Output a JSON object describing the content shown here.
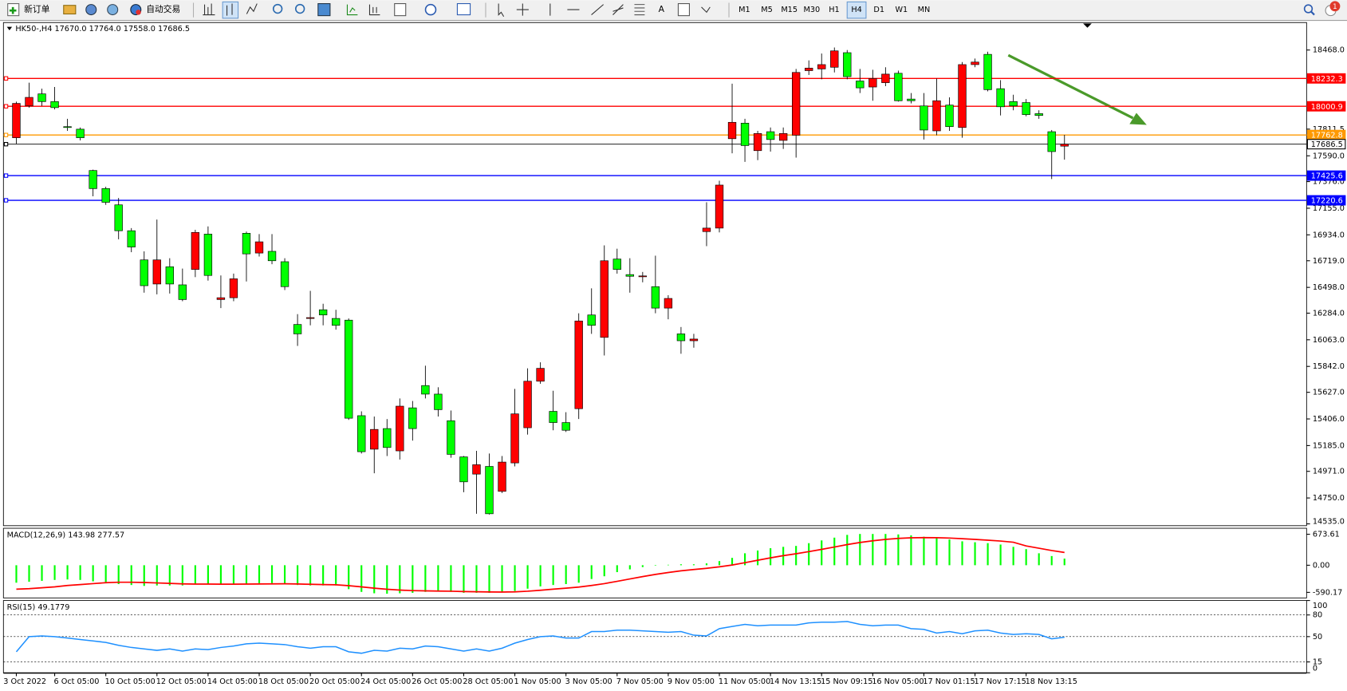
{
  "toolbar": {
    "new_order": "新订单",
    "auto_trading": "自动交易",
    "text_tool": "A",
    "timeframes": [
      "M1",
      "M5",
      "M15",
      "M30",
      "H1",
      "H4",
      "D1",
      "W1",
      "MN"
    ],
    "active_timeframe": "H4",
    "notifications": 1
  },
  "chart_data": [
    {
      "type": "candlestick",
      "symbol": "HK50-,H4",
      "header_labels": [
        "17670.0",
        "17764.0",
        "17558.0",
        "17686.5"
      ],
      "up_color": "#ff0000",
      "down_color": "#00ff00",
      "categories": [
        "3 Oct 2022",
        null,
        null,
        "6 Oct 05:00",
        null,
        null,
        null,
        "10 Oct 05:00",
        null,
        null,
        null,
        "12 Oct 05:00",
        null,
        null,
        null,
        "14 Oct 05:00",
        null,
        null,
        null,
        "18 Oct 05:00",
        null,
        null,
        null,
        "20 Oct 05:00",
        null,
        null,
        null,
        "24 Oct 05:00",
        null,
        null,
        null,
        "26 Oct 05:00",
        null,
        null,
        null,
        "28 Oct 05:00",
        null,
        null,
        null,
        "1 Nov 05:00",
        null,
        null,
        null,
        "3 Nov 05:00",
        null,
        null,
        null,
        "7 Nov 05:00",
        null,
        null,
        null,
        "9 Nov 05:00",
        null,
        null,
        null,
        "11 Nov 05:00",
        null,
        null,
        null,
        "14 Nov 13:15",
        null,
        null,
        null,
        "15 Nov 09:15",
        null,
        null,
        null,
        "16 Nov 05:00",
        null,
        null,
        null,
        "17 Nov 01:15",
        null,
        null,
        null,
        "17 Nov 17:15",
        null,
        null,
        null,
        "18 Nov 13:15",
        null,
        null,
        null
      ],
      "ohlc": [
        [
          17740,
          18040,
          17690,
          18025
        ],
        [
          18004,
          18197,
          17990,
          18075
        ],
        [
          18104,
          18147,
          18004,
          18040
        ],
        [
          18040,
          18161,
          17975,
          17990
        ],
        [
          17832,
          17897,
          17797,
          17829
        ],
        [
          17811,
          17825,
          17718,
          17740
        ],
        [
          17468,
          17475,
          17254,
          17318
        ],
        [
          17318,
          17333,
          17183,
          17204
        ],
        [
          17183,
          17240,
          16897,
          16968
        ],
        [
          16968,
          16990,
          16790,
          16833
        ],
        [
          16726,
          16797,
          16454,
          16512
        ],
        [
          16526,
          17061,
          16440,
          16726
        ],
        [
          16669,
          16740,
          16447,
          16526
        ],
        [
          16519,
          16654,
          16383,
          16397
        ],
        [
          16647,
          16976,
          16583,
          16954
        ],
        [
          16940,
          17004,
          16554,
          16597
        ],
        [
          16397,
          16597,
          16326,
          16412
        ],
        [
          16412,
          16612,
          16383,
          16569
        ],
        [
          16947,
          16961,
          16547,
          16776
        ],
        [
          16783,
          16940,
          16754,
          16876
        ],
        [
          16797,
          16940,
          16690,
          16719
        ],
        [
          16711,
          16740,
          16476,
          16504
        ],
        [
          16190,
          16276,
          16012,
          16112
        ],
        [
          16240,
          16469,
          16183,
          16247
        ],
        [
          16312,
          16362,
          16183,
          16269
        ],
        [
          16240,
          16312,
          16147,
          16183
        ],
        [
          16226,
          16240,
          15398,
          15412
        ],
        [
          15433,
          15469,
          15119,
          15134
        ],
        [
          15155,
          15426,
          14955,
          15319
        ],
        [
          15326,
          15405,
          15098,
          15169
        ],
        [
          15141,
          15576,
          15069,
          15512
        ],
        [
          15498,
          15555,
          15226,
          15326
        ],
        [
          15683,
          15848,
          15576,
          15612
        ],
        [
          15612,
          15669,
          15426,
          15483
        ],
        [
          15391,
          15476,
          15084,
          15112
        ],
        [
          15091,
          15098,
          14798,
          14884
        ],
        [
          14948,
          15141,
          14619,
          15026
        ],
        [
          15012,
          15119,
          14612,
          14619
        ],
        [
          14805,
          15098,
          14791,
          15048
        ],
        [
          15041,
          15655,
          15012,
          15448
        ],
        [
          15333,
          15826,
          15276,
          15719
        ],
        [
          15719,
          15876,
          15698,
          15826
        ],
        [
          15469,
          15640,
          15312,
          15376
        ],
        [
          15376,
          15462,
          15298,
          15312
        ],
        [
          15491,
          16283,
          15405,
          16219
        ],
        [
          16269,
          16490,
          16112,
          16183
        ],
        [
          16083,
          16847,
          15933,
          16719
        ],
        [
          16733,
          16819,
          16612,
          16647
        ],
        [
          16604,
          16740,
          16454,
          16590
        ],
        [
          16590,
          16626,
          16540,
          16593
        ],
        [
          16504,
          16761,
          16283,
          16326
        ],
        [
          16326,
          16433,
          16233,
          16406
        ],
        [
          16112,
          16169,
          15947,
          16055
        ],
        [
          16055,
          16112,
          15997,
          16069
        ],
        [
          16961,
          17204,
          16840,
          16990
        ],
        [
          16990,
          17383,
          16954,
          17347
        ],
        [
          17732,
          18189,
          17611,
          17868
        ],
        [
          17861,
          17897,
          17540,
          17675
        ],
        [
          17633,
          17797,
          17554,
          17775
        ],
        [
          17790,
          17825,
          17625,
          17725
        ],
        [
          17718,
          17825,
          17647,
          17775
        ],
        [
          17761,
          18311,
          17575,
          18282
        ],
        [
          18297,
          18382,
          18261,
          18318
        ],
        [
          18311,
          18439,
          18225,
          18347
        ],
        [
          18325,
          18489,
          18282,
          18461
        ],
        [
          18446,
          18468,
          18225,
          18247
        ],
        [
          18211,
          18311,
          18111,
          18154
        ],
        [
          18161,
          18304,
          18047,
          18232
        ],
        [
          18197,
          18325,
          18168,
          18268
        ],
        [
          18275,
          18297,
          18040,
          18047
        ],
        [
          18061,
          18111,
          18025,
          18047
        ],
        [
          18004,
          18111,
          17725,
          17804
        ],
        [
          17797,
          18232,
          17761,
          18047
        ],
        [
          18011,
          18075,
          17797,
          17832
        ],
        [
          17825,
          18368,
          17740,
          18347
        ],
        [
          18347,
          18397,
          18325,
          18368
        ],
        [
          18432,
          18454,
          18125,
          18139
        ],
        [
          18147,
          18218,
          17925,
          17997
        ],
        [
          18040,
          18097,
          17968,
          18004
        ],
        [
          18032,
          18061,
          17918,
          17932
        ],
        [
          17940,
          17968,
          17897,
          17925
        ],
        [
          17790,
          17804,
          17397,
          17625
        ],
        [
          17670,
          17764,
          17558,
          17686.5
        ]
      ],
      "ylim": [
        14520,
        18696
      ],
      "yticks": [
        {
          "value": 18468,
          "label": "18468.0"
        },
        {
          "value": 17811.5,
          "label": "17811.5"
        },
        {
          "value": 17590,
          "label": "17590.0"
        },
        {
          "value": 17376,
          "label": "17376.0"
        },
        {
          "value": 17155,
          "label": "17155.0"
        },
        {
          "value": 16934,
          "label": "16934.0"
        },
        {
          "value": 16719,
          "label": "16719.0"
        },
        {
          "value": 16498,
          "label": "16498.0"
        },
        {
          "value": 16284,
          "label": "16284.0"
        },
        {
          "value": 16063,
          "label": "16063.0"
        },
        {
          "value": 15842,
          "label": "15842.0"
        },
        {
          "value": 15627,
          "label": "15627.0"
        },
        {
          "value": 15406,
          "label": "15406.0"
        },
        {
          "value": 15185,
          "label": "15185.0"
        },
        {
          "value": 14971,
          "label": "14971.0"
        },
        {
          "value": 14750,
          "label": "14750.0"
        },
        {
          "value": 14535,
          "label": "14535.0"
        }
      ],
      "hlines": [
        {
          "value": 18232.3,
          "color": "#ff0000"
        },
        {
          "value": 18000.9,
          "color": "#ff0000"
        },
        {
          "value": 17762.8,
          "color": "#ff9900"
        },
        {
          "value": 17686.5,
          "color": "#000000"
        },
        {
          "value": 17425.6,
          "color": "#0000ff"
        },
        {
          "value": 17220.6,
          "color": "#0000ff"
        }
      ]
    },
    {
      "type": "macd",
      "title": "MACD(12,26,9)",
      "ylim": [
        -711,
        804
      ],
      "yticks": [
        673.61,
        {
          "value": 0,
          "label": "0.00"
        },
        -590.17
      ],
      "series": [
        {
          "color": "#00ff00",
          "values": [
            -380,
            -360,
            -340,
            -320,
            -310,
            -320,
            -350,
            -380,
            -410,
            -430,
            -450,
            -440,
            -440,
            -440,
            -420,
            -410,
            -420,
            -410,
            -400,
            -390,
            -390,
            -400,
            -430,
            -440,
            -440,
            -440,
            -520,
            -580,
            -610,
            -620,
            -610,
            -600,
            -580,
            -570,
            -580,
            -600,
            -600,
            -600,
            -590,
            -560,
            -510,
            -460,
            -430,
            -410,
            -380,
            -300,
            -240,
            -150,
            -90,
            -40,
            -10,
            10,
            20,
            20,
            40,
            90,
            160,
            260,
            320,
            370,
            400,
            420,
            480,
            540,
            600,
            660,
            680,
            680,
            680,
            670,
            650,
            620,
            590,
            560,
            520,
            500,
            480,
            450,
            400,
            350,
            260,
            200,
            143.98
          ]
        },
        {
          "color": "#ff0000",
          "values": [
            -520,
            -510,
            -490,
            -470,
            -440,
            -420,
            -400,
            -380,
            -370,
            -370,
            -375,
            -385,
            -395,
            -405,
            -410,
            -410,
            -412,
            -412,
            -410,
            -408,
            -405,
            -404,
            -408,
            -415,
            -420,
            -425,
            -444,
            -471,
            -499,
            -523,
            -540,
            -552,
            -558,
            -561,
            -565,
            -572,
            -577,
            -582,
            -583,
            -579,
            -565,
            -544,
            -521,
            -499,
            -475,
            -440,
            -400,
            -350,
            -298,
            -247,
            -200,
            -158,
            -122,
            -94,
            -67,
            -35,
            4,
            55,
            108,
            160,
            208,
            250,
            296,
            345,
            396,
            449,
            495,
            532,
            562,
            583,
            596,
            601,
            599,
            591,
            577,
            561,
            545,
            526,
            500,
            420,
            370,
            320,
            277.57
          ]
        }
      ]
    },
    {
      "type": "rsi",
      "title": "RSI(15)",
      "color": "#1e90ff",
      "ylim": [
        0,
        100
      ],
      "yticks": [
        100,
        80,
        50,
        15,
        0
      ],
      "values": [
        29,
        50,
        51,
        50,
        48,
        46,
        44,
        42,
        38,
        35,
        33,
        31,
        33,
        30,
        33,
        32,
        35,
        37,
        40,
        41,
        40,
        39,
        36,
        34,
        36,
        36,
        29,
        27,
        31,
        30,
        34,
        33,
        37,
        36,
        33,
        30,
        33,
        30,
        34,
        41,
        46,
        50,
        51,
        48,
        48,
        57,
        57,
        59,
        59,
        58,
        57,
        56,
        57,
        52,
        51,
        61,
        64,
        67,
        65,
        66,
        66,
        66,
        69,
        70,
        70,
        71,
        67,
        65,
        66,
        66,
        61,
        60,
        55,
        57,
        54,
        58,
        59,
        55,
        53,
        54,
        53,
        47,
        49.1779
      ]
    }
  ]
}
